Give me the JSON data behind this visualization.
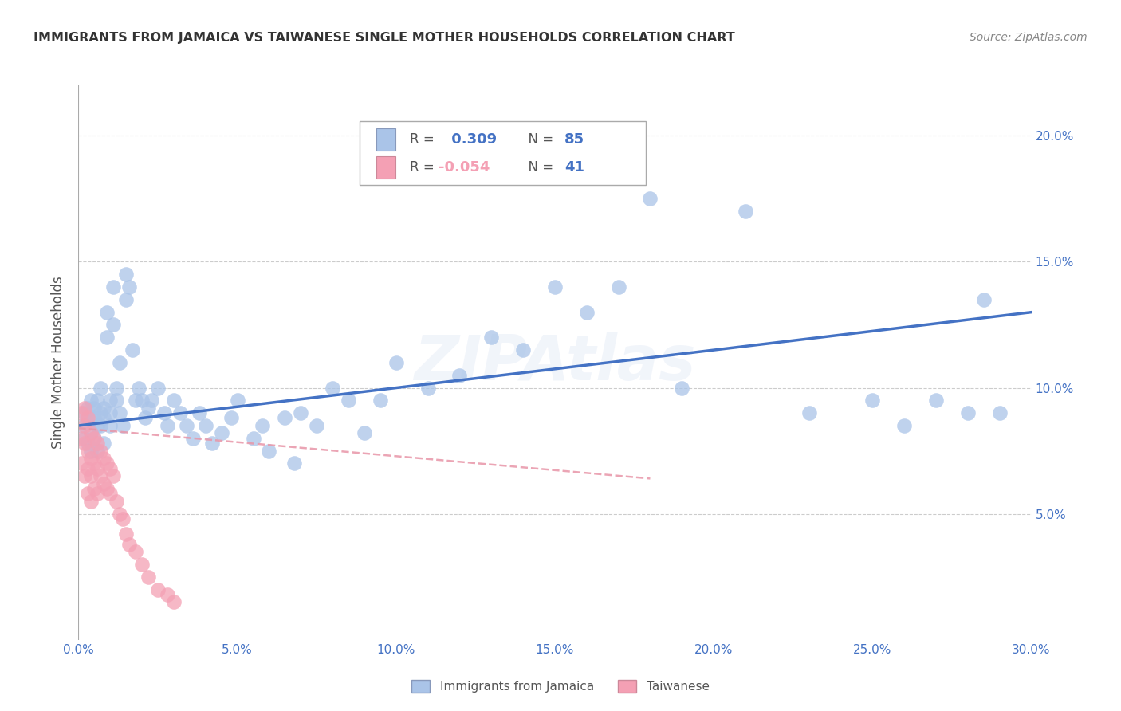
{
  "title": "IMMIGRANTS FROM JAMAICA VS TAIWANESE SINGLE MOTHER HOUSEHOLDS CORRELATION CHART",
  "source": "Source: ZipAtlas.com",
  "ylabel": "Single Mother Households",
  "xlabel_ticks": [
    "0.0%",
    "5.0%",
    "10.0%",
    "15.0%",
    "20.0%",
    "25.0%",
    "30.0%"
  ],
  "ylabel_ticks": [
    "5.0%",
    "10.0%",
    "15.0%",
    "20.0%"
  ],
  "xlim": [
    0.0,
    0.3
  ],
  "ylim": [
    0.0,
    0.22
  ],
  "blue_line_color": "#4472c4",
  "pink_line_color": "#e896a8",
  "grid_color": "#cccccc",
  "title_color": "#333333",
  "axis_tick_color": "#4472c4",
  "watermark": "ZIPAtlas",
  "scatter_blue_color": "#aac4e8",
  "scatter_pink_color": "#f4a0b4",
  "jamaica_x": [
    0.001,
    0.002,
    0.002,
    0.003,
    0.003,
    0.003,
    0.004,
    0.004,
    0.004,
    0.005,
    0.005,
    0.005,
    0.006,
    0.006,
    0.006,
    0.007,
    0.007,
    0.007,
    0.008,
    0.008,
    0.008,
    0.009,
    0.009,
    0.01,
    0.01,
    0.01,
    0.011,
    0.011,
    0.012,
    0.012,
    0.013,
    0.013,
    0.014,
    0.015,
    0.015,
    0.016,
    0.017,
    0.018,
    0.019,
    0.02,
    0.021,
    0.022,
    0.023,
    0.025,
    0.027,
    0.028,
    0.03,
    0.032,
    0.034,
    0.036,
    0.038,
    0.04,
    0.042,
    0.045,
    0.048,
    0.05,
    0.055,
    0.058,
    0.06,
    0.065,
    0.068,
    0.07,
    0.075,
    0.08,
    0.085,
    0.09,
    0.095,
    0.1,
    0.11,
    0.12,
    0.13,
    0.14,
    0.15,
    0.16,
    0.17,
    0.18,
    0.19,
    0.21,
    0.23,
    0.25,
    0.26,
    0.27,
    0.28,
    0.285,
    0.29
  ],
  "jamaica_y": [
    0.085,
    0.09,
    0.08,
    0.092,
    0.078,
    0.088,
    0.082,
    0.095,
    0.075,
    0.088,
    0.092,
    0.08,
    0.085,
    0.095,
    0.075,
    0.09,
    0.085,
    0.1,
    0.088,
    0.092,
    0.078,
    0.13,
    0.12,
    0.095,
    0.085,
    0.09,
    0.14,
    0.125,
    0.1,
    0.095,
    0.11,
    0.09,
    0.085,
    0.145,
    0.135,
    0.14,
    0.115,
    0.095,
    0.1,
    0.095,
    0.088,
    0.092,
    0.095,
    0.1,
    0.09,
    0.085,
    0.095,
    0.09,
    0.085,
    0.08,
    0.09,
    0.085,
    0.078,
    0.082,
    0.088,
    0.095,
    0.08,
    0.085,
    0.075,
    0.088,
    0.07,
    0.09,
    0.085,
    0.1,
    0.095,
    0.082,
    0.095,
    0.11,
    0.1,
    0.105,
    0.12,
    0.115,
    0.14,
    0.13,
    0.14,
    0.175,
    0.1,
    0.17,
    0.09,
    0.095,
    0.085,
    0.095,
    0.09,
    0.135,
    0.09
  ],
  "taiwanese_x": [
    0.001,
    0.001,
    0.001,
    0.002,
    0.002,
    0.002,
    0.002,
    0.003,
    0.003,
    0.003,
    0.003,
    0.004,
    0.004,
    0.004,
    0.004,
    0.005,
    0.005,
    0.005,
    0.006,
    0.006,
    0.006,
    0.007,
    0.007,
    0.008,
    0.008,
    0.009,
    0.009,
    0.01,
    0.01,
    0.011,
    0.012,
    0.013,
    0.014,
    0.015,
    0.016,
    0.018,
    0.02,
    0.022,
    0.025,
    0.028,
    0.03
  ],
  "taiwanese_y": [
    0.09,
    0.08,
    0.07,
    0.092,
    0.085,
    0.078,
    0.065,
    0.088,
    0.075,
    0.068,
    0.058,
    0.082,
    0.072,
    0.065,
    0.055,
    0.08,
    0.07,
    0.06,
    0.078,
    0.068,
    0.058,
    0.075,
    0.065,
    0.072,
    0.062,
    0.07,
    0.06,
    0.068,
    0.058,
    0.065,
    0.055,
    0.05,
    0.048,
    0.042,
    0.038,
    0.035,
    0.03,
    0.025,
    0.02,
    0.018,
    0.015
  ],
  "blue_line_x": [
    0.0,
    0.3
  ],
  "blue_line_y": [
    0.085,
    0.13
  ],
  "pink_line_x": [
    0.0,
    0.18
  ],
  "pink_line_y": [
    0.084,
    0.064
  ]
}
